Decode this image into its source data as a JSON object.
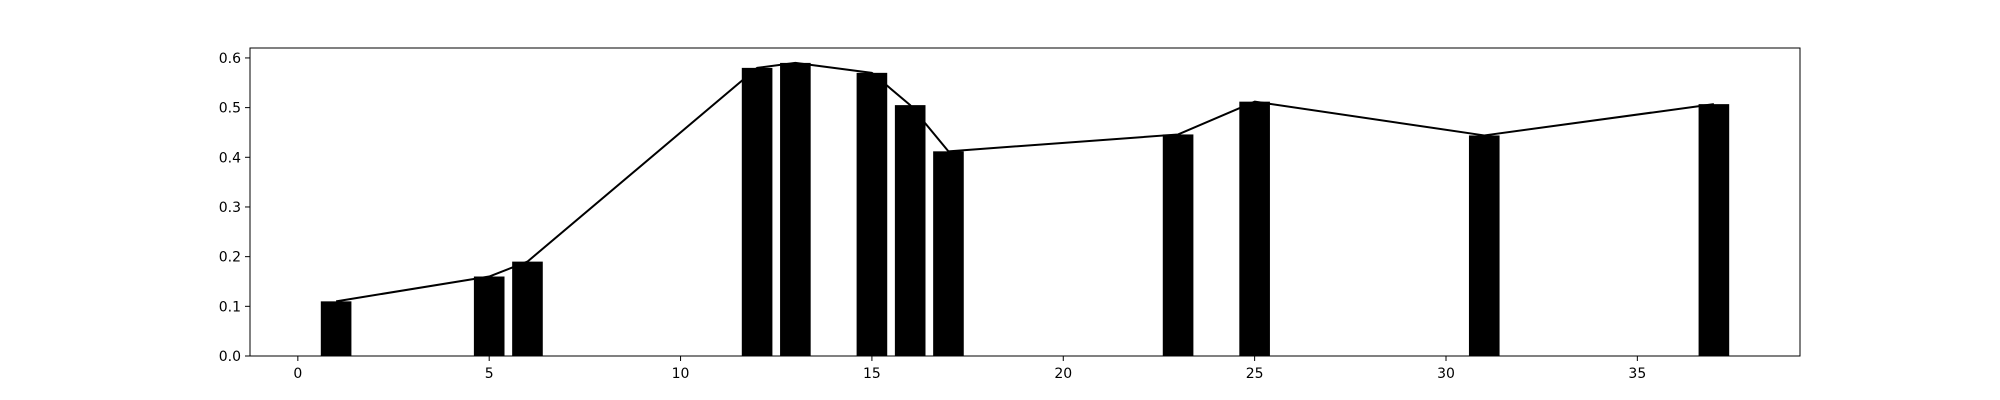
{
  "chart_data": {
    "type": "bar",
    "x": [
      1,
      5,
      6,
      12,
      13,
      15,
      16,
      17,
      23,
      25,
      31,
      37
    ],
    "values": [
      0.11,
      0.16,
      0.19,
      0.58,
      0.59,
      0.57,
      0.505,
      0.412,
      0.446,
      0.512,
      0.444,
      0.507
    ],
    "line_overlay": true,
    "title": "",
    "xlabel": "",
    "ylabel": "",
    "xlim": [
      -1.25,
      39.25
    ],
    "ylim": [
      0,
      0.62
    ],
    "x_ticks": [
      0,
      5,
      10,
      15,
      20,
      25,
      30,
      35
    ],
    "y_ticks": [
      0.0,
      0.1,
      0.2,
      0.3,
      0.4,
      0.5,
      0.6
    ],
    "x_tick_labels": [
      "0",
      "5",
      "10",
      "15",
      "20",
      "25",
      "30",
      "35"
    ],
    "y_tick_labels": [
      "0.0",
      "0.1",
      "0.2",
      "0.3",
      "0.4",
      "0.5",
      "0.6"
    ],
    "grid": false,
    "legend": "none",
    "colors": {
      "bar": "#000000",
      "line": "#000000",
      "axes": "#000000",
      "background": "#ffffff"
    }
  }
}
